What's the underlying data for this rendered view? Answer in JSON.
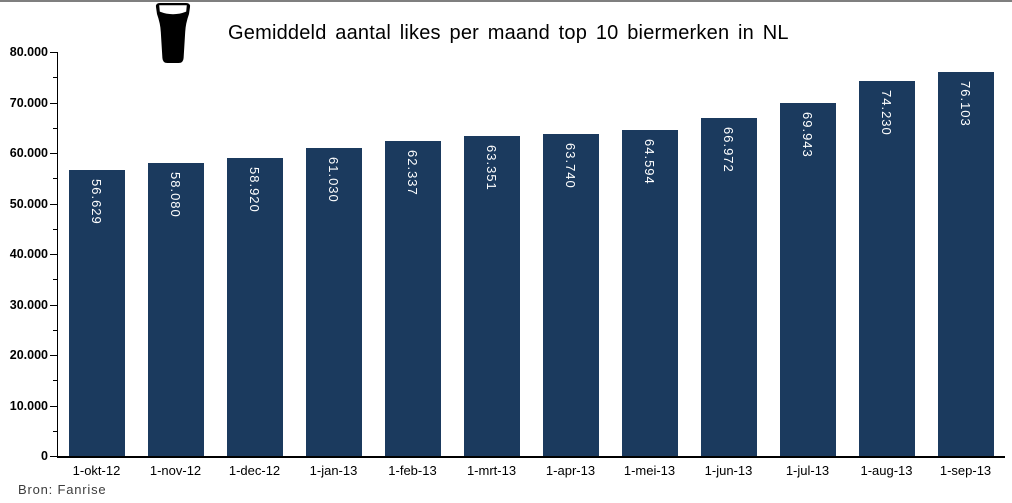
{
  "header": {
    "title": "Gemiddeld aantal likes per maand top 10 biermerken in NL"
  },
  "source_note": "Bron: Fanrise",
  "chart_data": {
    "type": "bar",
    "title": "Gemiddeld aantal likes per maand top 10 biermerken in NL",
    "categories": [
      "1-okt-12",
      "1-nov-12",
      "1-dec-12",
      "1-jan-13",
      "1-feb-13",
      "1-mrt-13",
      "1-apr-13",
      "1-mei-13",
      "1-jun-13",
      "1-jul-13",
      "1-aug-13",
      "1-sep-13"
    ],
    "values": [
      56629,
      58080,
      58920,
      61030,
      62337,
      63351,
      63740,
      64594,
      66972,
      69943,
      74230,
      76103
    ],
    "value_labels": [
      "56.629",
      "58.080",
      "58.920",
      "61.030",
      "62.337",
      "63.351",
      "63.740",
      "64.594",
      "66.972",
      "69.943",
      "74.230",
      "76.103"
    ],
    "xlabel": "",
    "ylabel": "",
    "ylim": [
      0,
      80000
    ],
    "ytick_step": 10000,
    "ytick_minor_step": 5000,
    "ytick_labels": [
      "0",
      "10.000",
      "20.000",
      "30.000",
      "40.000",
      "50.000",
      "60.000",
      "70.000",
      "80.000"
    ],
    "grid": false,
    "legend": "none",
    "bar_color": "#1b3a5e",
    "value_label_color": "#ffffff",
    "source": "Bron: Fanrise"
  }
}
